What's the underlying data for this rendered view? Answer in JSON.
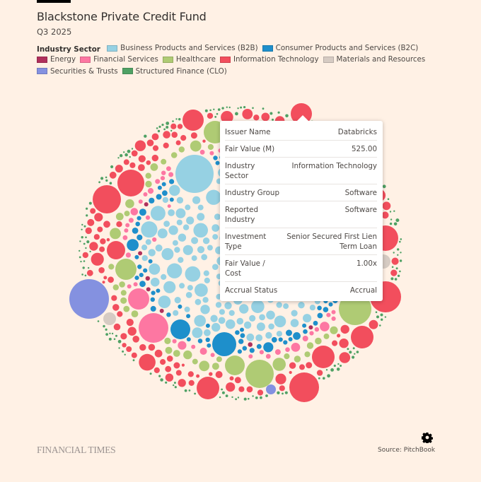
{
  "header": {
    "title": "Blackstone Private Credit Fund",
    "subtitle": "Q3 2025"
  },
  "legend": {
    "label": "Industry Sector",
    "items": [
      {
        "name": "Business Products and Services (B2B)",
        "color": "#96d1e3"
      },
      {
        "name": "Consumer Products and Services (B2C)",
        "color": "#1e8fcb"
      },
      {
        "name": "Energy",
        "color": "#b0305c"
      },
      {
        "name": "Financial Services",
        "color": "#fd77a2"
      },
      {
        "name": "Healthcare",
        "color": "#afcb74"
      },
      {
        "name": "Information Technology",
        "color": "#f24e5d"
      },
      {
        "name": "Materials and Resources",
        "color": "#d6cbc3"
      },
      {
        "name": "Securities & Trusts",
        "color": "#8491e0"
      },
      {
        "name": "Structured Finance (CLO)",
        "color": "#4fa164"
      }
    ]
  },
  "tooltip": {
    "rows": [
      {
        "key": "Issuer Name",
        "value": "Databricks"
      },
      {
        "key": "Fair Value (M)",
        "value": "525.00"
      },
      {
        "key": "Industry Sector",
        "value": "Information Technology"
      },
      {
        "key": "Industry Group",
        "value": "Software"
      },
      {
        "key": "Reported Industry",
        "value": "Software"
      },
      {
        "key": "Investment Type",
        "value": "Senior Secured First Lien Term Loan"
      },
      {
        "key": "Fair Value / Cost",
        "value": "1.00x"
      },
      {
        "key": "Accrual Status",
        "value": "Accrual"
      }
    ]
  },
  "footer": {
    "brand": "FINANCIAL TIMES",
    "source": "Source: PitchBook",
    "settings_icon": "gear-icon"
  },
  "chart_data": {
    "type": "bubble-pack",
    "title": "Blackstone Private Credit Fund",
    "subtitle": "Q3 2025",
    "size_metric": "Fair Value (M)",
    "color_by": "Industry Sector",
    "legend_position": "top",
    "highlighted": {
      "issuer": "Databricks",
      "sector": "Information Technology",
      "fair_value_m": 525.0
    },
    "sectors_inner_to_outer": [
      {
        "name": "Business Products and Services (B2B)",
        "approx_share": 0.3
      },
      {
        "name": "Consumer Products and Services (B2C)",
        "approx_share": 0.06
      },
      {
        "name": "Energy",
        "approx_share": 0.02
      },
      {
        "name": "Financial Services",
        "approx_share": 0.09
      },
      {
        "name": "Healthcare",
        "approx_share": 0.15
      },
      {
        "name": "Information Technology",
        "approx_share": 0.33
      },
      {
        "name": "Materials and Resources",
        "approx_share": 0.01
      },
      {
        "name": "Securities & Trusts",
        "approx_share": 0.02
      },
      {
        "name": "Structured Finance (CLO)",
        "approx_share": 0.02
      }
    ]
  }
}
